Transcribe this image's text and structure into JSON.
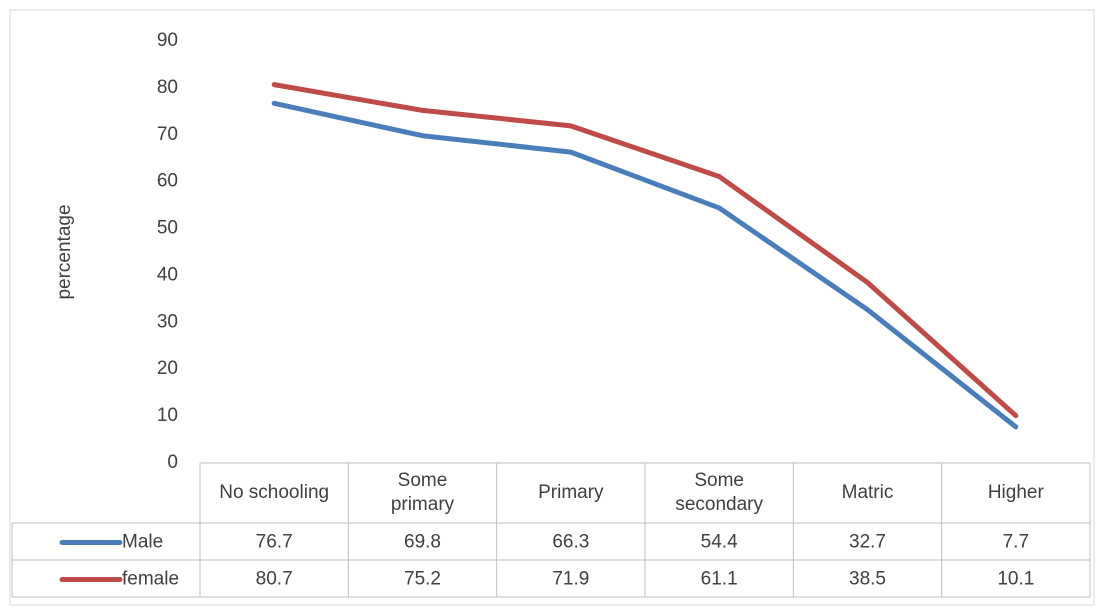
{
  "chart_data": {
    "type": "line",
    "y_label": "percentage",
    "categories": [
      "No schooling",
      "Some primary",
      "Primary",
      "Some secondary",
      "Matric",
      "Higher"
    ],
    "series": [
      {
        "name": "Male",
        "color": "#4a7ebb",
        "values": [
          76.7,
          69.8,
          66.3,
          54.4,
          32.7,
          7.7
        ]
      },
      {
        "name": "female",
        "color": "#be4b48",
        "values": [
          80.7,
          75.2,
          71.9,
          61.1,
          38.5,
          10.1
        ]
      }
    ],
    "ylim": [
      0,
      90
    ],
    "yticks": [
      0,
      10,
      20,
      30,
      40,
      50,
      60,
      70,
      80,
      90
    ],
    "grid": false
  }
}
